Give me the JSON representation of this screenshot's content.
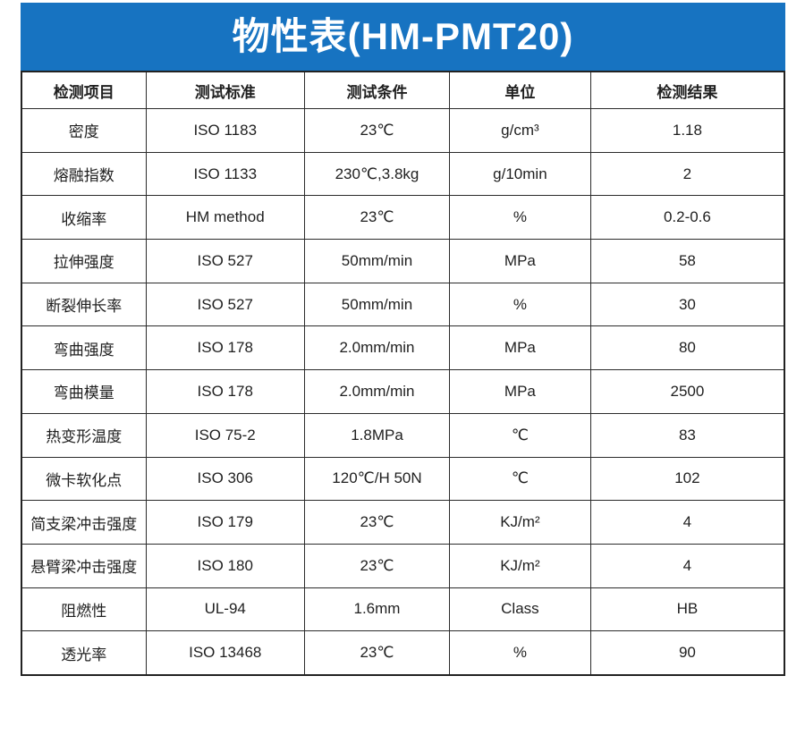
{
  "banner": {
    "title": "物性表(HM-PMT20)",
    "background_color": "#1773c1",
    "text_color": "#ffffff"
  },
  "table": {
    "columns": [
      "检测项目",
      "测试标准",
      "测试条件",
      "单位",
      "检测结果"
    ],
    "rows": [
      {
        "item": "密度",
        "standard": "ISO 1183",
        "condition": "23℃",
        "unit": "g/cm³",
        "result": "1.18"
      },
      {
        "item": "熔融指数",
        "standard": "ISO 1133",
        "condition": "230℃,3.8kg",
        "unit": "g/10min",
        "result": "2"
      },
      {
        "item": "收缩率",
        "standard": "HM method",
        "condition": "23℃",
        "unit": "%",
        "result": "0.2-0.6"
      },
      {
        "item": "拉伸强度",
        "standard": "ISO 527",
        "condition": "50mm/min",
        "unit": "MPa",
        "result": "58"
      },
      {
        "item": "断裂伸长率",
        "standard": "ISO 527",
        "condition": "50mm/min",
        "unit": "%",
        "result": "30"
      },
      {
        "item": "弯曲强度",
        "standard": "ISO 178",
        "condition": "2.0mm/min",
        "unit": "MPa",
        "result": "80"
      },
      {
        "item": "弯曲模量",
        "standard": "ISO 178",
        "condition": "2.0mm/min",
        "unit": "MPa",
        "result": "2500"
      },
      {
        "item": "热变形温度",
        "standard": "ISO 75-2",
        "condition": "1.8MPa",
        "unit": "℃",
        "result": "83"
      },
      {
        "item": "微卡软化点",
        "standard": "ISO 306",
        "condition": "120℃/H 50N",
        "unit": "℃",
        "result": "102"
      },
      {
        "item": "简支梁冲击强度",
        "standard": "ISO 179",
        "condition": "23℃",
        "unit": "KJ/m²",
        "result": "4"
      },
      {
        "item": "悬臂梁冲击强度",
        "standard": "ISO 180",
        "condition": "23℃",
        "unit": "KJ/m²",
        "result": "4"
      },
      {
        "item": "阻燃性",
        "standard": "UL-94",
        "condition": "1.6mm",
        "unit": "Class",
        "result": "HB"
      },
      {
        "item": "透光率",
        "standard": "ISO 13468",
        "condition": "23℃",
        "unit": "%",
        "result": "90"
      }
    ]
  }
}
